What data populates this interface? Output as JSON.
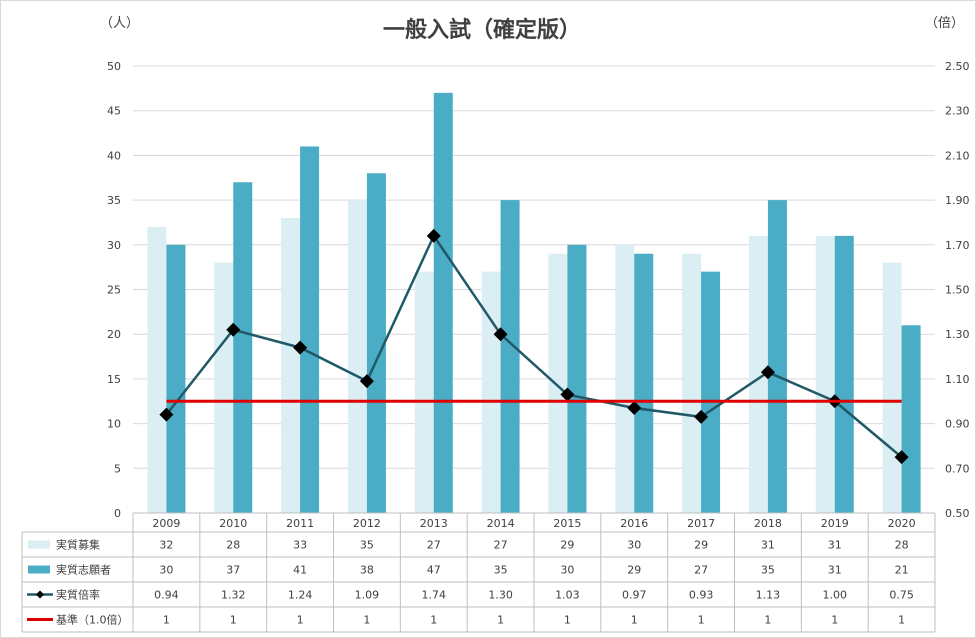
{
  "chart_data": {
    "type": "bar",
    "title": "一般入試（確定版）",
    "y_left_unit": "（人）",
    "y_right_unit": "（倍）",
    "categories": [
      "2009",
      "2010",
      "2011",
      "2012",
      "2013",
      "2014",
      "2015",
      "2016",
      "2017",
      "2018",
      "2019",
      "2020"
    ],
    "ylim_left": [
      0,
      50
    ],
    "ylim_right": [
      0.5,
      2.5
    ],
    "left_ticks": [
      "0",
      "5",
      "10",
      "15",
      "20",
      "25",
      "30",
      "35",
      "40",
      "45",
      "50"
    ],
    "right_ticks": [
      "0.50",
      "0.70",
      "0.90",
      "1.10",
      "1.30",
      "1.50",
      "1.70",
      "1.90",
      "2.10",
      "2.30",
      "2.50"
    ],
    "series": [
      {
        "name": "実質募集",
        "kind": "bar",
        "axis": "left",
        "color": "#daeef3",
        "values": [
          32,
          28,
          33,
          35,
          27,
          27,
          29,
          30,
          29,
          31,
          31,
          28
        ],
        "labels": [
          "32",
          "28",
          "33",
          "35",
          "27",
          "27",
          "29",
          "30",
          "29",
          "31",
          "31",
          "28"
        ]
      },
      {
        "name": "実質志願者",
        "kind": "bar",
        "axis": "left",
        "color": "#4bacc6",
        "values": [
          30,
          37,
          41,
          38,
          47,
          35,
          30,
          29,
          27,
          35,
          31,
          21
        ],
        "labels": [
          "30",
          "37",
          "41",
          "38",
          "47",
          "35",
          "30",
          "29",
          "27",
          "35",
          "31",
          "21"
        ]
      },
      {
        "name": "実質倍率",
        "kind": "line",
        "axis": "right",
        "color": "#215968",
        "values": [
          0.94,
          1.32,
          1.24,
          1.09,
          1.74,
          1.3,
          1.03,
          0.97,
          0.93,
          1.13,
          1.0,
          0.75
        ],
        "labels": [
          "0.94",
          "1.32",
          "1.24",
          "1.09",
          "1.74",
          "1.30",
          "1.03",
          "0.97",
          "0.93",
          "1.13",
          "1.00",
          "0.75"
        ]
      },
      {
        "name": "基準（1.0倍）",
        "kind": "line",
        "axis": "right",
        "color": "#e00000",
        "values": [
          1,
          1,
          1,
          1,
          1,
          1,
          1,
          1,
          1,
          1,
          1,
          1
        ],
        "labels": [
          "1",
          "1",
          "1",
          "1",
          "1",
          "1",
          "1",
          "1",
          "1",
          "1",
          "1",
          "1"
        ]
      }
    ],
    "grid": true,
    "legend": "data-table"
  }
}
